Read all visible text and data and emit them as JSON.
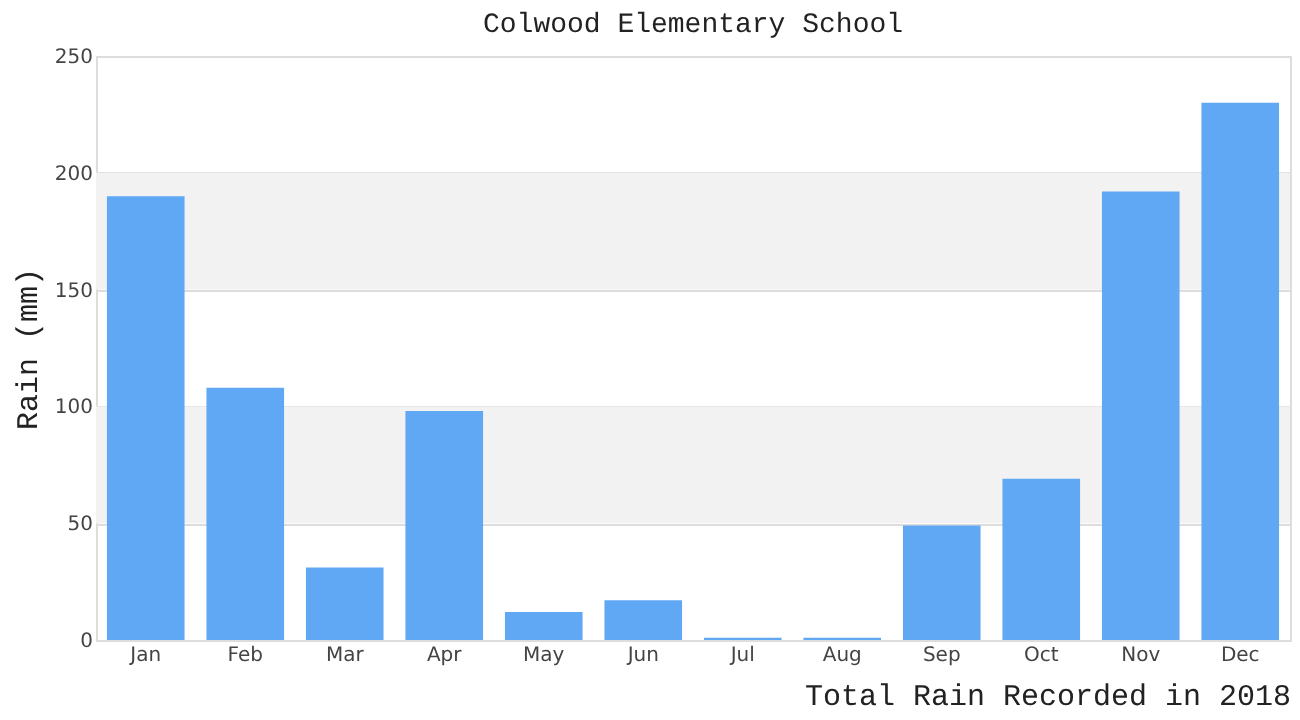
{
  "chart_data": {
    "type": "bar",
    "title": "Colwood Elementary School",
    "xlabel": "Total Rain Recorded in 2018",
    "ylabel": "Rain (mm)",
    "categories": [
      "Jan",
      "Feb",
      "Mar",
      "Apr",
      "May",
      "Jun",
      "Jul",
      "Aug",
      "Sep",
      "Oct",
      "Nov",
      "Dec"
    ],
    "values": [
      190,
      108,
      31,
      98,
      12,
      17,
      1,
      1,
      49,
      69,
      192,
      230
    ],
    "color": "#61a8f4",
    "ylim": [
      0,
      250
    ],
    "yticks": [
      0,
      50,
      100,
      150,
      200,
      250
    ],
    "grid": "y",
    "bands": [
      {
        "axis": "y",
        "from": 50,
        "to": 100,
        "color": "#f2f2f2"
      },
      {
        "axis": "y",
        "from": 150,
        "to": 200,
        "color": "#f2f2f2"
      }
    ]
  }
}
